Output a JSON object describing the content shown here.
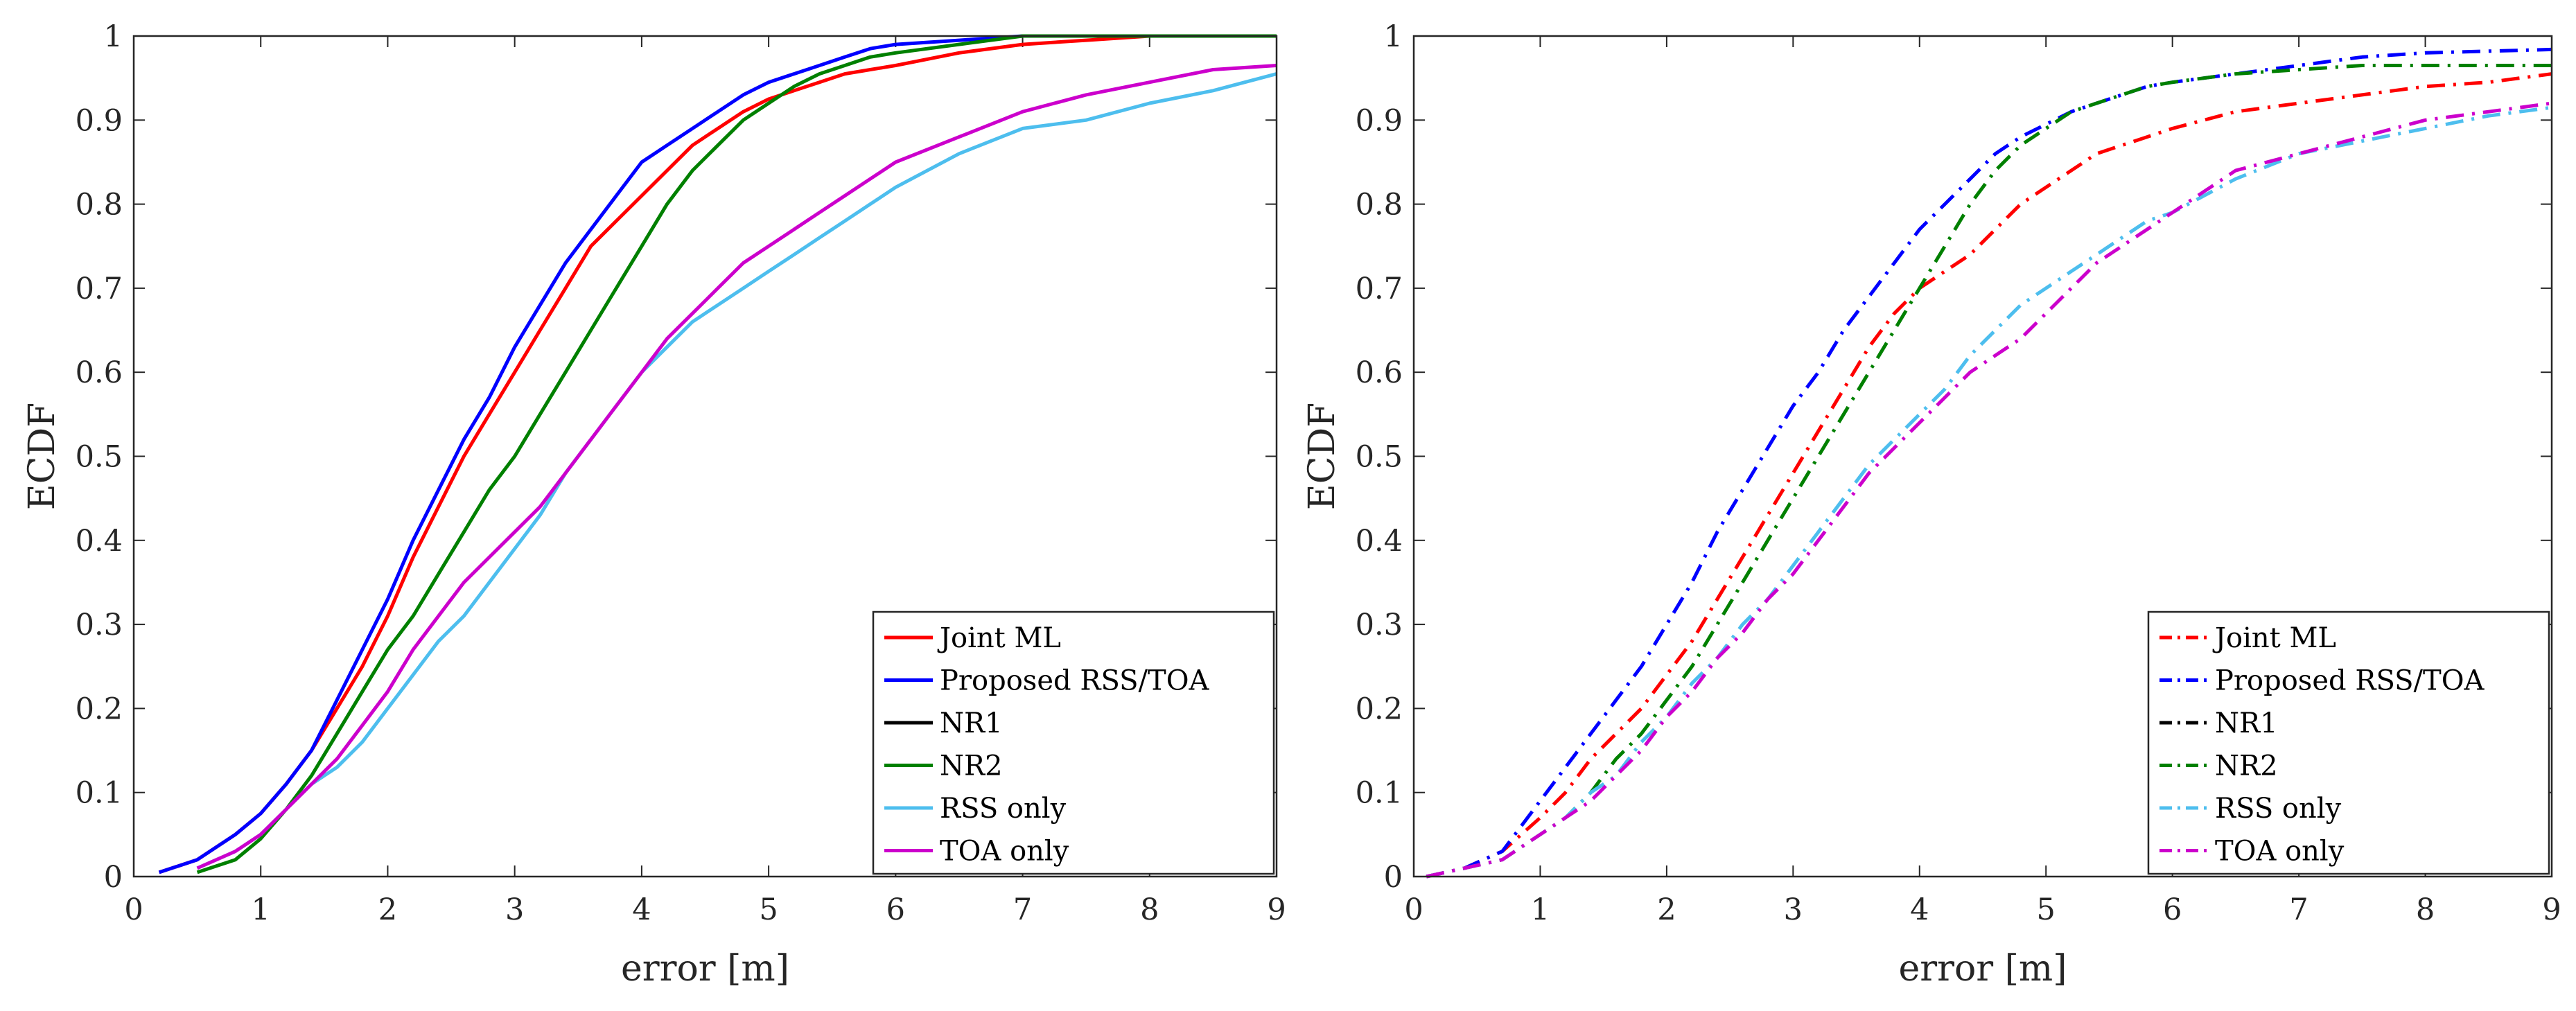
{
  "chart_data": [
    {
      "type": "line",
      "xlabel": "error [m]",
      "ylabel": "ECDF",
      "xlim": [
        0,
        9
      ],
      "ylim": [
        0,
        1
      ],
      "xticks": [
        "0",
        "1",
        "2",
        "3",
        "4",
        "5",
        "6",
        "7",
        "8",
        "9"
      ],
      "yticks": [
        "0",
        "0.1",
        "0.2",
        "0.3",
        "0.4",
        "0.5",
        "0.6",
        "0.7",
        "0.8",
        "0.9",
        "1"
      ],
      "line_style": "solid",
      "legend_position": "bottom-right",
      "series": [
        {
          "name": "Joint ML",
          "color": "#ff0000",
          "x": [
            0.2,
            0.5,
            0.8,
            1.0,
            1.2,
            1.4,
            1.6,
            1.8,
            2.0,
            2.2,
            2.4,
            2.6,
            2.8,
            3.0,
            3.2,
            3.4,
            3.6,
            3.8,
            4.0,
            4.2,
            4.4,
            4.6,
            4.8,
            5.0,
            5.2,
            5.4,
            5.6,
            5.8,
            6.0,
            6.5,
            7.0,
            7.5,
            8.0,
            8.5,
            9.0
          ],
          "y": [
            0.005,
            0.02,
            0.05,
            0.075,
            0.11,
            0.15,
            0.2,
            0.25,
            0.31,
            0.38,
            0.44,
            0.5,
            0.55,
            0.6,
            0.65,
            0.7,
            0.75,
            0.78,
            0.81,
            0.84,
            0.87,
            0.89,
            0.91,
            0.925,
            0.935,
            0.945,
            0.955,
            0.96,
            0.965,
            0.98,
            0.99,
            0.995,
            1.0,
            1.0,
            1.0
          ]
        },
        {
          "name": "Proposed RSS/TOA",
          "color": "#0000ff",
          "x": [
            0.2,
            0.5,
            0.8,
            1.0,
            1.2,
            1.4,
            1.6,
            1.8,
            2.0,
            2.2,
            2.4,
            2.6,
            2.8,
            3.0,
            3.2,
            3.4,
            3.6,
            3.8,
            4.0,
            4.2,
            4.4,
            4.6,
            4.8,
            5.0,
            5.2,
            5.4,
            5.6,
            5.8,
            6.0,
            6.5,
            7.0,
            7.5,
            8.0,
            8.5,
            9.0
          ],
          "y": [
            0.005,
            0.02,
            0.05,
            0.075,
            0.11,
            0.15,
            0.21,
            0.27,
            0.33,
            0.4,
            0.46,
            0.52,
            0.57,
            0.63,
            0.68,
            0.73,
            0.77,
            0.81,
            0.85,
            0.87,
            0.89,
            0.91,
            0.93,
            0.945,
            0.955,
            0.965,
            0.975,
            0.985,
            0.99,
            0.995,
            1.0,
            1.0,
            1.0,
            1.0,
            1.0
          ]
        },
        {
          "name": "NR1",
          "color": "#000000",
          "x": [],
          "y": []
        },
        {
          "name": "NR2",
          "color": "#008000",
          "x": [
            0.5,
            0.8,
            1.0,
            1.2,
            1.4,
            1.6,
            1.8,
            2.0,
            2.2,
            2.4,
            2.6,
            2.8,
            3.0,
            3.2,
            3.4,
            3.6,
            3.8,
            4.0,
            4.2,
            4.4,
            4.6,
            4.8,
            5.0,
            5.2,
            5.4,
            5.6,
            5.8,
            6.0,
            6.5,
            7.0,
            7.5,
            8.0,
            8.5,
            9.0
          ],
          "y": [
            0.005,
            0.02,
            0.045,
            0.08,
            0.12,
            0.17,
            0.22,
            0.27,
            0.31,
            0.36,
            0.41,
            0.46,
            0.5,
            0.55,
            0.6,
            0.65,
            0.7,
            0.75,
            0.8,
            0.84,
            0.87,
            0.9,
            0.92,
            0.94,
            0.955,
            0.965,
            0.975,
            0.98,
            0.99,
            1.0,
            1.0,
            1.0,
            1.0,
            1.0
          ]
        },
        {
          "name": "RSS only",
          "color": "#4dbeee",
          "x": [
            0.5,
            0.8,
            1.0,
            1.2,
            1.4,
            1.6,
            1.8,
            2.0,
            2.2,
            2.4,
            2.6,
            2.8,
            3.0,
            3.2,
            3.4,
            3.6,
            3.8,
            4.0,
            4.2,
            4.4,
            4.6,
            4.8,
            5.0,
            5.2,
            5.4,
            5.6,
            5.8,
            6.0,
            6.5,
            7.0,
            7.5,
            8.0,
            8.5,
            9.0
          ],
          "y": [
            0.01,
            0.03,
            0.05,
            0.08,
            0.11,
            0.13,
            0.16,
            0.2,
            0.24,
            0.28,
            0.31,
            0.35,
            0.39,
            0.43,
            0.48,
            0.52,
            0.56,
            0.6,
            0.63,
            0.66,
            0.68,
            0.7,
            0.72,
            0.74,
            0.76,
            0.78,
            0.8,
            0.82,
            0.86,
            0.89,
            0.9,
            0.92,
            0.935,
            0.955
          ]
        },
        {
          "name": "TOA only",
          "color": "#cc00cc",
          "x": [
            0.5,
            0.8,
            1.0,
            1.2,
            1.4,
            1.6,
            1.8,
            2.0,
            2.2,
            2.4,
            2.6,
            2.8,
            3.0,
            3.2,
            3.4,
            3.6,
            3.8,
            4.0,
            4.2,
            4.4,
            4.6,
            4.8,
            5.0,
            5.2,
            5.4,
            5.6,
            5.8,
            6.0,
            6.5,
            7.0,
            7.5,
            8.0,
            8.5,
            9.0
          ],
          "y": [
            0.01,
            0.03,
            0.05,
            0.08,
            0.11,
            0.14,
            0.18,
            0.22,
            0.27,
            0.31,
            0.35,
            0.38,
            0.41,
            0.44,
            0.48,
            0.52,
            0.56,
            0.6,
            0.64,
            0.67,
            0.7,
            0.73,
            0.75,
            0.77,
            0.79,
            0.81,
            0.83,
            0.85,
            0.88,
            0.91,
            0.93,
            0.945,
            0.96,
            0.965
          ]
        }
      ]
    },
    {
      "type": "line",
      "xlabel": "error [m]",
      "ylabel": "ECDF",
      "xlim": [
        0,
        9
      ],
      "ylim": [
        0,
        1
      ],
      "xticks": [
        "0",
        "1",
        "2",
        "3",
        "4",
        "5",
        "6",
        "7",
        "8",
        "9"
      ],
      "yticks": [
        "0",
        "0.1",
        "0.2",
        "0.3",
        "0.4",
        "0.5",
        "0.6",
        "0.7",
        "0.8",
        "0.9",
        "1"
      ],
      "line_style": "dash-dot",
      "legend_position": "bottom-right",
      "series": [
        {
          "name": "Joint ML",
          "color": "#ff0000",
          "x": [
            0.1,
            0.4,
            0.7,
            1.0,
            1.2,
            1.4,
            1.6,
            1.8,
            2.0,
            2.2,
            2.4,
            2.6,
            2.8,
            3.0,
            3.2,
            3.4,
            3.6,
            3.8,
            4.0,
            4.2,
            4.4,
            4.6,
            4.8,
            5.0,
            5.2,
            5.4,
            5.6,
            5.8,
            6.0,
            6.5,
            7.0,
            7.5,
            8.0,
            8.5,
            9.0
          ],
          "y": [
            0.0,
            0.01,
            0.03,
            0.07,
            0.1,
            0.14,
            0.17,
            0.2,
            0.24,
            0.28,
            0.33,
            0.38,
            0.43,
            0.48,
            0.53,
            0.58,
            0.63,
            0.67,
            0.7,
            0.72,
            0.74,
            0.77,
            0.8,
            0.82,
            0.84,
            0.86,
            0.87,
            0.88,
            0.89,
            0.91,
            0.92,
            0.93,
            0.94,
            0.945,
            0.955
          ]
        },
        {
          "name": "Proposed RSS/TOA",
          "color": "#0000ff",
          "x": [
            0.1,
            0.4,
            0.7,
            1.0,
            1.2,
            1.4,
            1.6,
            1.8,
            2.0,
            2.2,
            2.4,
            2.6,
            2.8,
            3.0,
            3.2,
            3.4,
            3.6,
            3.8,
            4.0,
            4.2,
            4.4,
            4.6,
            4.8,
            5.0,
            5.2,
            5.4,
            5.6,
            5.8,
            6.0,
            6.5,
            7.0,
            7.5,
            8.0,
            8.5,
            9.0
          ],
          "y": [
            0.0,
            0.01,
            0.03,
            0.09,
            0.13,
            0.17,
            0.21,
            0.25,
            0.3,
            0.35,
            0.41,
            0.46,
            0.51,
            0.56,
            0.6,
            0.65,
            0.69,
            0.73,
            0.77,
            0.8,
            0.83,
            0.86,
            0.88,
            0.895,
            0.91,
            0.92,
            0.93,
            0.94,
            0.945,
            0.955,
            0.965,
            0.975,
            0.98,
            0.982,
            0.984
          ]
        },
        {
          "name": "NR1",
          "color": "#000000",
          "x": [],
          "y": []
        },
        {
          "name": "NR2",
          "color": "#008000",
          "x": [
            0.1,
            0.4,
            0.7,
            1.0,
            1.2,
            1.4,
            1.6,
            1.8,
            2.0,
            2.2,
            2.4,
            2.6,
            2.8,
            3.0,
            3.2,
            3.4,
            3.6,
            3.8,
            4.0,
            4.2,
            4.4,
            4.6,
            4.8,
            5.0,
            5.2,
            5.4,
            5.6,
            5.8,
            6.0,
            6.5,
            7.0,
            7.5,
            8.0,
            8.5,
            9.0
          ],
          "y": [
            0.0,
            0.01,
            0.02,
            0.05,
            0.07,
            0.1,
            0.14,
            0.17,
            0.21,
            0.25,
            0.3,
            0.35,
            0.4,
            0.45,
            0.5,
            0.55,
            0.6,
            0.65,
            0.7,
            0.75,
            0.8,
            0.84,
            0.87,
            0.89,
            0.91,
            0.92,
            0.93,
            0.94,
            0.945,
            0.955,
            0.96,
            0.965,
            0.965,
            0.965,
            0.965
          ]
        },
        {
          "name": "RSS only",
          "color": "#4dbeee",
          "x": [
            0.1,
            0.4,
            0.7,
            1.0,
            1.2,
            1.4,
            1.6,
            1.8,
            2.0,
            2.2,
            2.4,
            2.6,
            2.8,
            3.0,
            3.2,
            3.4,
            3.6,
            3.8,
            4.0,
            4.2,
            4.4,
            4.6,
            4.8,
            5.0,
            5.2,
            5.4,
            5.6,
            5.8,
            6.0,
            6.5,
            7.0,
            7.5,
            8.0,
            8.5,
            9.0
          ],
          "y": [
            0.0,
            0.01,
            0.02,
            0.05,
            0.07,
            0.1,
            0.12,
            0.16,
            0.19,
            0.23,
            0.26,
            0.3,
            0.33,
            0.37,
            0.41,
            0.45,
            0.49,
            0.52,
            0.55,
            0.58,
            0.62,
            0.65,
            0.68,
            0.7,
            0.72,
            0.74,
            0.76,
            0.78,
            0.79,
            0.83,
            0.86,
            0.875,
            0.89,
            0.905,
            0.915
          ]
        },
        {
          "name": "TOA only",
          "color": "#cc00cc",
          "x": [
            0.1,
            0.4,
            0.7,
            1.0,
            1.2,
            1.4,
            1.6,
            1.8,
            2.0,
            2.2,
            2.4,
            2.6,
            2.8,
            3.0,
            3.2,
            3.4,
            3.6,
            3.8,
            4.0,
            4.2,
            4.4,
            4.6,
            4.8,
            5.0,
            5.2,
            5.4,
            5.6,
            5.8,
            6.0,
            6.5,
            7.0,
            7.5,
            8.0,
            8.5,
            9.0
          ],
          "y": [
            0.0,
            0.01,
            0.02,
            0.05,
            0.07,
            0.09,
            0.12,
            0.15,
            0.19,
            0.22,
            0.26,
            0.29,
            0.33,
            0.36,
            0.4,
            0.44,
            0.48,
            0.51,
            0.54,
            0.57,
            0.6,
            0.62,
            0.64,
            0.67,
            0.7,
            0.73,
            0.75,
            0.77,
            0.79,
            0.84,
            0.86,
            0.88,
            0.9,
            0.91,
            0.92
          ]
        }
      ]
    }
  ]
}
